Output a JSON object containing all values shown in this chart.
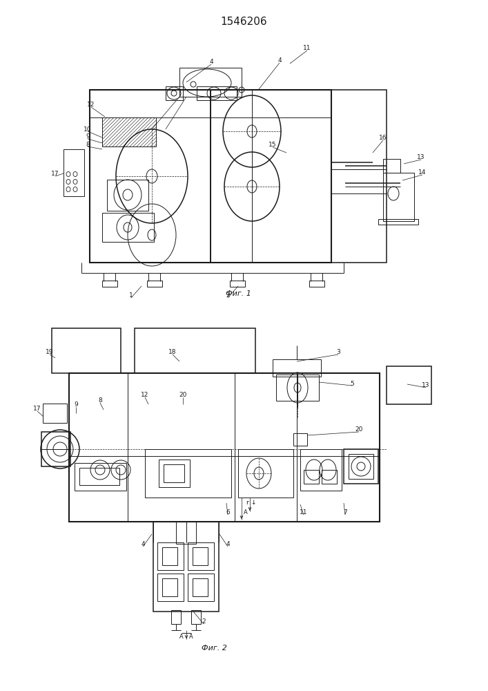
{
  "title": "1546206",
  "fig1_label": "Фиг. 1",
  "fig2_label": "Фиг. 2",
  "bg": "#ffffff",
  "lc": "#1a1a1a",
  "fig_width": 7.07,
  "fig_height": 10.0,
  "dpi": 100
}
